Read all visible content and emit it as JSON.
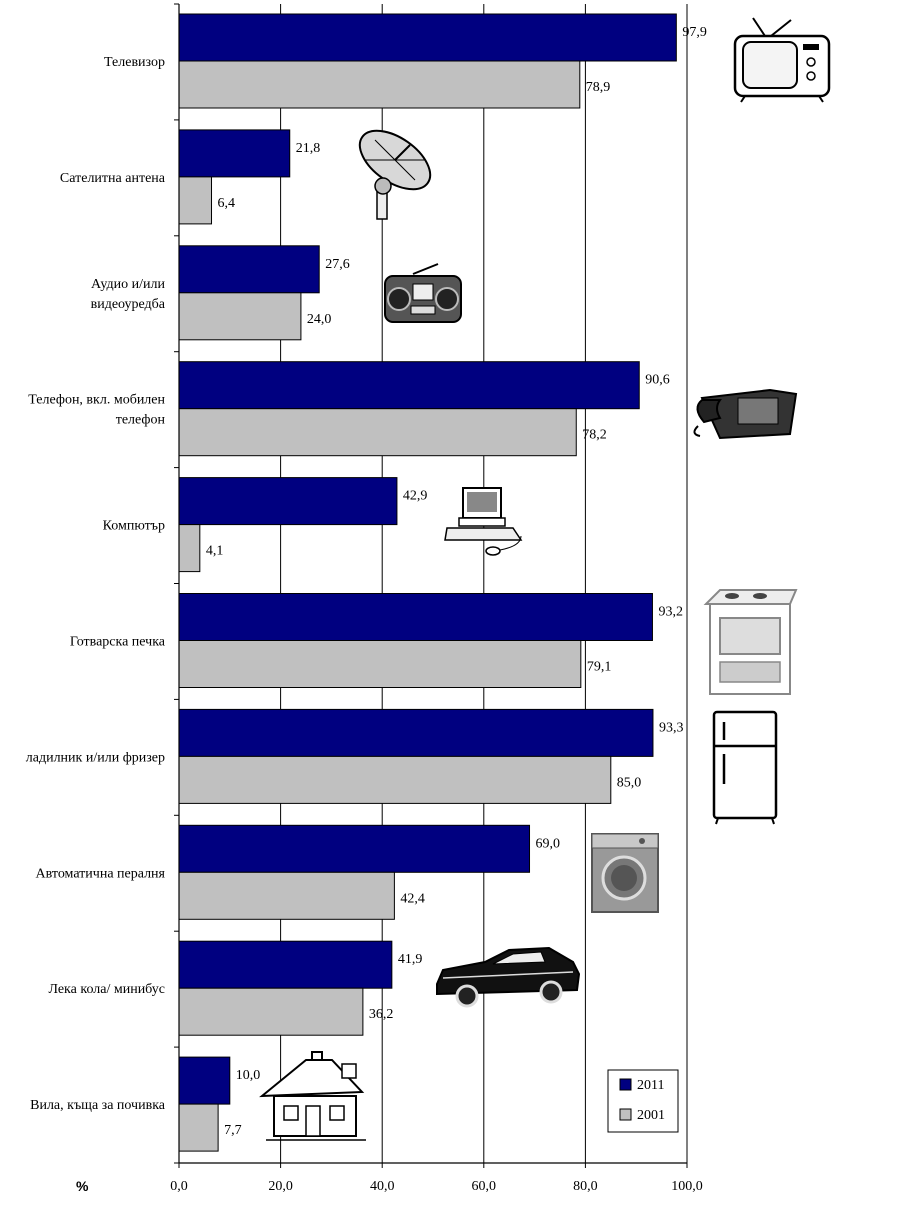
{
  "chart_data": {
    "type": "bar",
    "orientation": "horizontal",
    "categories": [
      [
        "Телевизор"
      ],
      [
        "Сателитна антена"
      ],
      [
        "Аудио и/или",
        "видеоуредба"
      ],
      [
        "Телефон, вкл. мобилен",
        "телефон"
      ],
      [
        "Компютър"
      ],
      [
        "Готварска печка"
      ],
      [
        "ладилник и/или фризер"
      ],
      [
        "Автоматична пералня"
      ],
      [
        "Лека кола/ минибус"
      ],
      [
        "Вила, къща за почивка"
      ]
    ],
    "series": [
      {
        "name": "2011",
        "color": "#000080",
        "values": [
          97.9,
          21.8,
          27.6,
          90.6,
          42.9,
          93.2,
          93.3,
          69.0,
          41.9,
          10.0
        ],
        "labels": [
          "97,9",
          "21,8",
          "27,6",
          "90,6",
          "42,9",
          "93,2",
          "93,3",
          "69,0",
          "41,9",
          "10,0"
        ]
      },
      {
        "name": "2001",
        "color": "#c0c0c0",
        "values": [
          78.9,
          6.4,
          24.0,
          78.2,
          4.1,
          79.1,
          85.0,
          42.4,
          36.2,
          7.7
        ],
        "labels": [
          "78,9",
          "6,4",
          "24,0",
          "78,2",
          "4,1",
          "79,1",
          "85,0",
          "42,4",
          "36,2",
          "7,7"
        ]
      }
    ],
    "xlim": [
      0,
      100
    ],
    "xticks": [
      0,
      20,
      40,
      60,
      80,
      100
    ],
    "xtick_labels": [
      "0,0",
      "20,0",
      "40,0",
      "60,0",
      "80,0",
      "100,0"
    ],
    "xlabel": "%",
    "grid": true,
    "legend_position": "bottom-right",
    "icons": [
      "tv-icon",
      "satellite-dish-icon",
      "boombox-icon",
      "telephone-icon",
      "computer-icon",
      "stove-icon",
      "refrigerator-icon",
      "washing-machine-icon",
      "car-icon",
      "house-icon"
    ]
  }
}
